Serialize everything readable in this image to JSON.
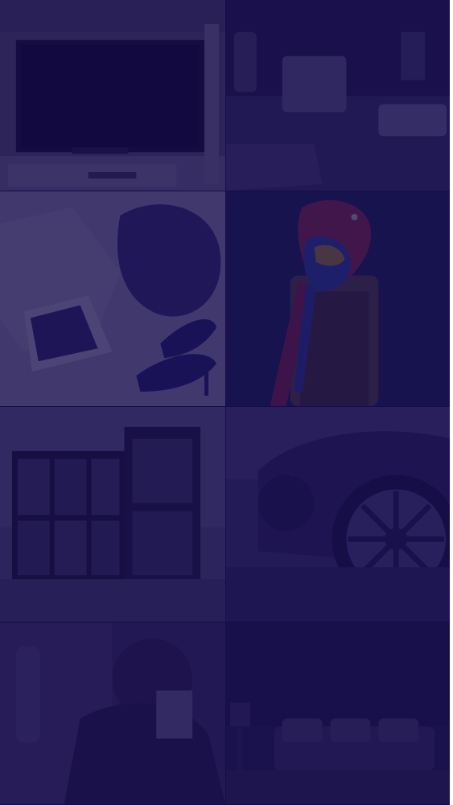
{
  "gallery": {
    "overlay_color": "#140a48",
    "tiles": [
      {
        "subject": "tv-living-room"
      },
      {
        "subject": "coffee-machine-kitchen"
      },
      {
        "subject": "fashion-flatlay-heels"
      },
      {
        "subject": "macaw-parrot"
      },
      {
        "subject": "modern-glass-house"
      },
      {
        "subject": "sports-car-wheel"
      },
      {
        "subject": "portrait-person-dark"
      },
      {
        "subject": "dark-sofa-interior"
      }
    ]
  }
}
